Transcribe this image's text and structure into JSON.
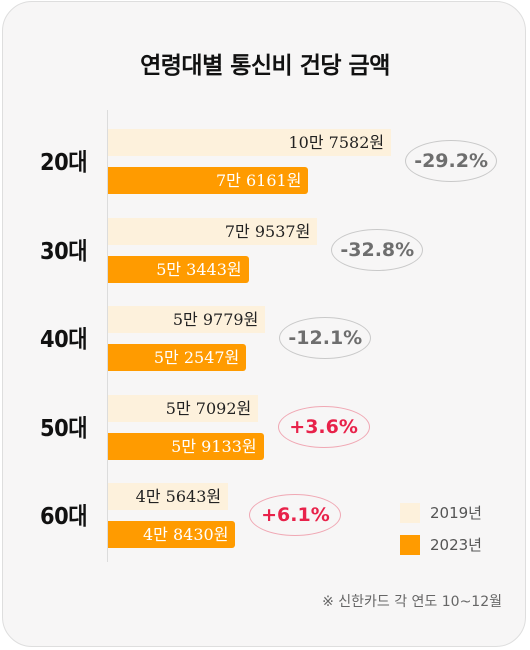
{
  "chart_data": {
    "type": "bar",
    "orientation": "horizontal",
    "title": "연령대별 통신비 건당 금액",
    "categories": [
      "20대",
      "30대",
      "40대",
      "50대",
      "60대"
    ],
    "series": [
      {
        "name": "2019년",
        "color": "#fdf1dc",
        "values": [
          107582,
          79537,
          59779,
          57092,
          45643
        ],
        "labels": [
          "10만 7582원",
          "7만 9537원",
          "5만 9779원",
          "5만 7092원",
          "4만 5643원"
        ]
      },
      {
        "name": "2023년",
        "color": "#ff9b00",
        "values": [
          76161,
          53443,
          52547,
          59133,
          48430
        ],
        "labels": [
          "7만 6161원",
          "5만 3443원",
          "5만 2547원",
          "5만 9133원",
          "4만 8430원"
        ]
      }
    ],
    "changes": [
      {
        "text": "-29.2%",
        "sign": "negative"
      },
      {
        "text": "-32.8%",
        "sign": "negative"
      },
      {
        "text": "-12.1%",
        "sign": "negative"
      },
      {
        "text": "+3.6%",
        "sign": "positive"
      },
      {
        "text": "+6.1%",
        "sign": "positive"
      }
    ],
    "xlim": [
      0,
      114000
    ],
    "legend_position": "bottom-right",
    "grid": false,
    "source": "※ 신한카드 각 연도 10~12월"
  }
}
